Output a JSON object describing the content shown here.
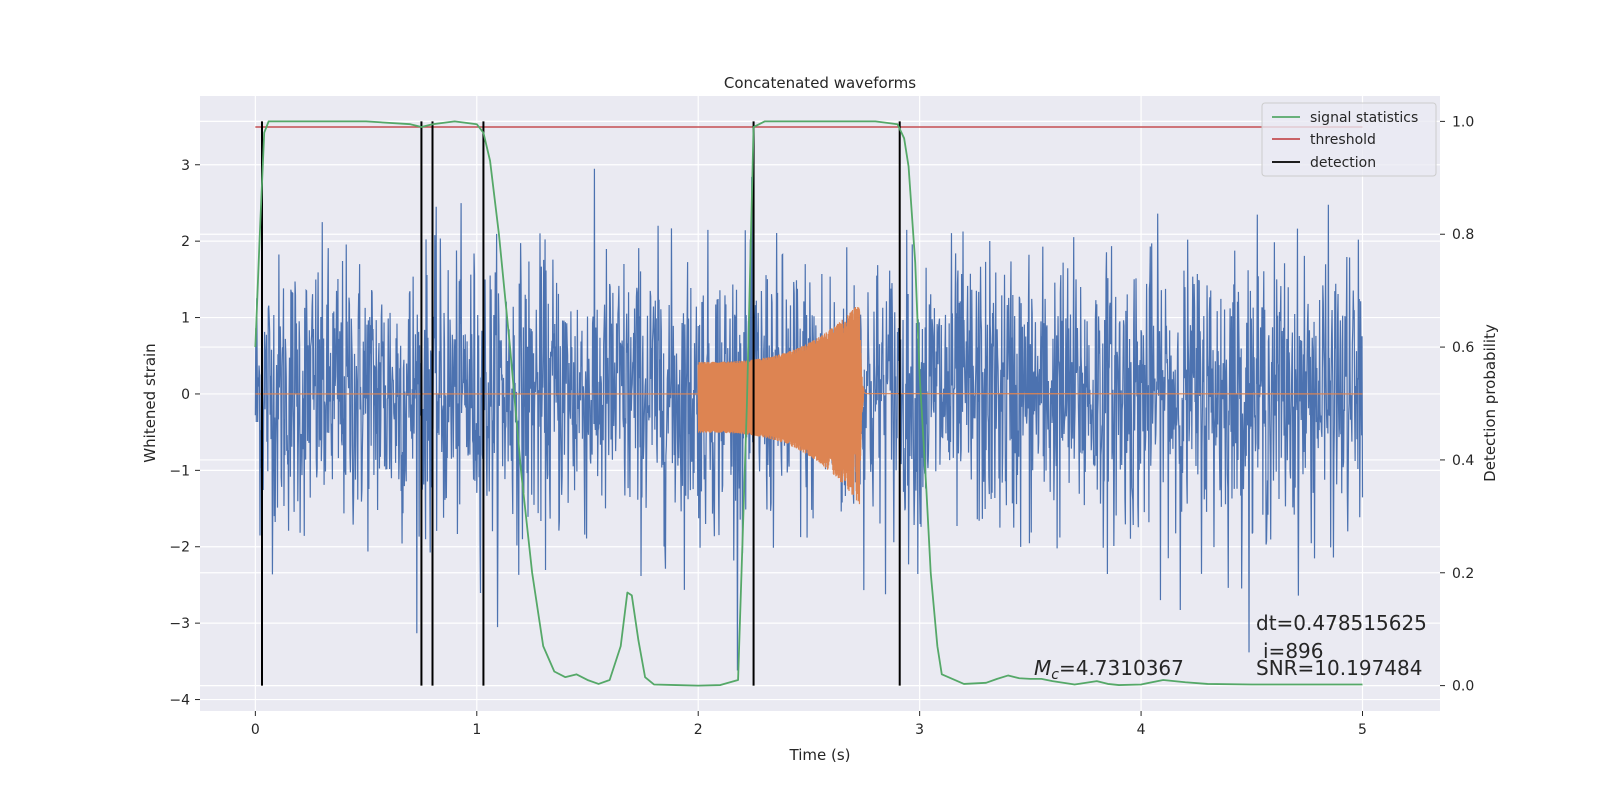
{
  "chart_data": {
    "type": "line",
    "title": "Concatenated waveforms",
    "xlabel": "Time (s)",
    "ylabel": "Whitened strain",
    "ylabel_right": "Detection probability",
    "xlim": [
      -0.25,
      5.35
    ],
    "ylim": [
      -4.15,
      3.9
    ],
    "ylim_right": [
      -0.045,
      1.045
    ],
    "xticks": [
      0,
      1,
      2,
      3,
      4,
      5
    ],
    "yticks": [
      -4,
      -3,
      -2,
      -1,
      0,
      1,
      2,
      3
    ],
    "yticks_right": [
      0.0,
      0.2,
      0.4,
      0.6,
      0.8,
      1.0
    ],
    "xtick_labels": [
      "0",
      "1",
      "2",
      "3",
      "4",
      "5"
    ],
    "ytick_labels": [
      "−4",
      "−3",
      "−2",
      "−1",
      "0",
      "1",
      "2",
      "3"
    ],
    "ytick_right_labels": [
      "0.0",
      "0.2",
      "0.4",
      "0.6",
      "0.8",
      "1.0"
    ],
    "grid": true,
    "legend_position": "top-right",
    "colors": {
      "background": "#eaeaf2",
      "grid": "#ffffff",
      "noise": "#4c72b0",
      "template": "#dd8452",
      "signal_statistics": "#55a868",
      "threshold": "#c44e52",
      "detection": "#000000"
    },
    "noise": {
      "x_range": [
        0,
        5
      ],
      "amplitude_sigma": 0.9,
      "max": 3.58,
      "min": -3.8
    },
    "template": {
      "start": 2.0,
      "merger": 2.73,
      "end": 2.76,
      "peak_upper": 1.2,
      "peak_lower": -1.45,
      "initial_amplitude": 0.35
    },
    "series": [
      {
        "name": "signal statistics",
        "axis": "right",
        "x": [
          0,
          0.02,
          0.04,
          0.06,
          0.1,
          0.5,
          0.7,
          0.75,
          0.8,
          0.9,
          1.0,
          1.03,
          1.06,
          1.1,
          1.15,
          1.2,
          1.25,
          1.3,
          1.35,
          1.4,
          1.45,
          1.5,
          1.55,
          1.6,
          1.65,
          1.68,
          1.7,
          1.73,
          1.76,
          1.8,
          1.9,
          2.0,
          2.1,
          2.18,
          2.22,
          2.25,
          2.3,
          2.5,
          2.8,
          2.9,
          2.93,
          2.95,
          2.98,
          3.0,
          3.03,
          3.05,
          3.08,
          3.1,
          3.2,
          3.3,
          3.35,
          3.4,
          3.45,
          3.5,
          3.55,
          3.6,
          3.7,
          3.8,
          3.85,
          3.9,
          4.0,
          4.1,
          4.2,
          4.3,
          4.5,
          4.7,
          5.0
        ],
        "y": [
          0.6,
          0.8,
          0.98,
          1.0,
          1.0,
          1.0,
          0.995,
          0.99,
          0.995,
          1.0,
          0.995,
          0.98,
          0.93,
          0.8,
          0.6,
          0.38,
          0.2,
          0.07,
          0.025,
          0.015,
          0.02,
          0.01,
          0.003,
          0.01,
          0.07,
          0.165,
          0.16,
          0.08,
          0.015,
          0.002,
          0.001,
          0.0,
          0.001,
          0.01,
          0.5,
          0.99,
          1.0,
          1.0,
          1.0,
          0.995,
          0.97,
          0.92,
          0.75,
          0.55,
          0.35,
          0.2,
          0.07,
          0.02,
          0.003,
          0.005,
          0.012,
          0.018,
          0.013,
          0.012,
          0.012,
          0.008,
          0.002,
          0.008,
          0.003,
          0.001,
          0.002,
          0.01,
          0.006,
          0.003,
          0.002,
          0.002,
          0.002
        ]
      },
      {
        "name": "threshold",
        "axis": "right",
        "x": [
          0,
          5
        ],
        "y": [
          0.99,
          0.99
        ]
      },
      {
        "name": "detection",
        "axis": "right",
        "x": [
          0.03,
          0.75,
          0.8,
          1.03,
          2.25,
          2.91
        ],
        "y_range": [
          0,
          1
        ]
      }
    ],
    "annotations": {
      "dt": "dt=0.478515625",
      "i": "i=896",
      "mc_symbol": "M",
      "mc_subscript": "c",
      "mc_value": "=4.7310367",
      "snr": "SNR=10.197484"
    }
  }
}
